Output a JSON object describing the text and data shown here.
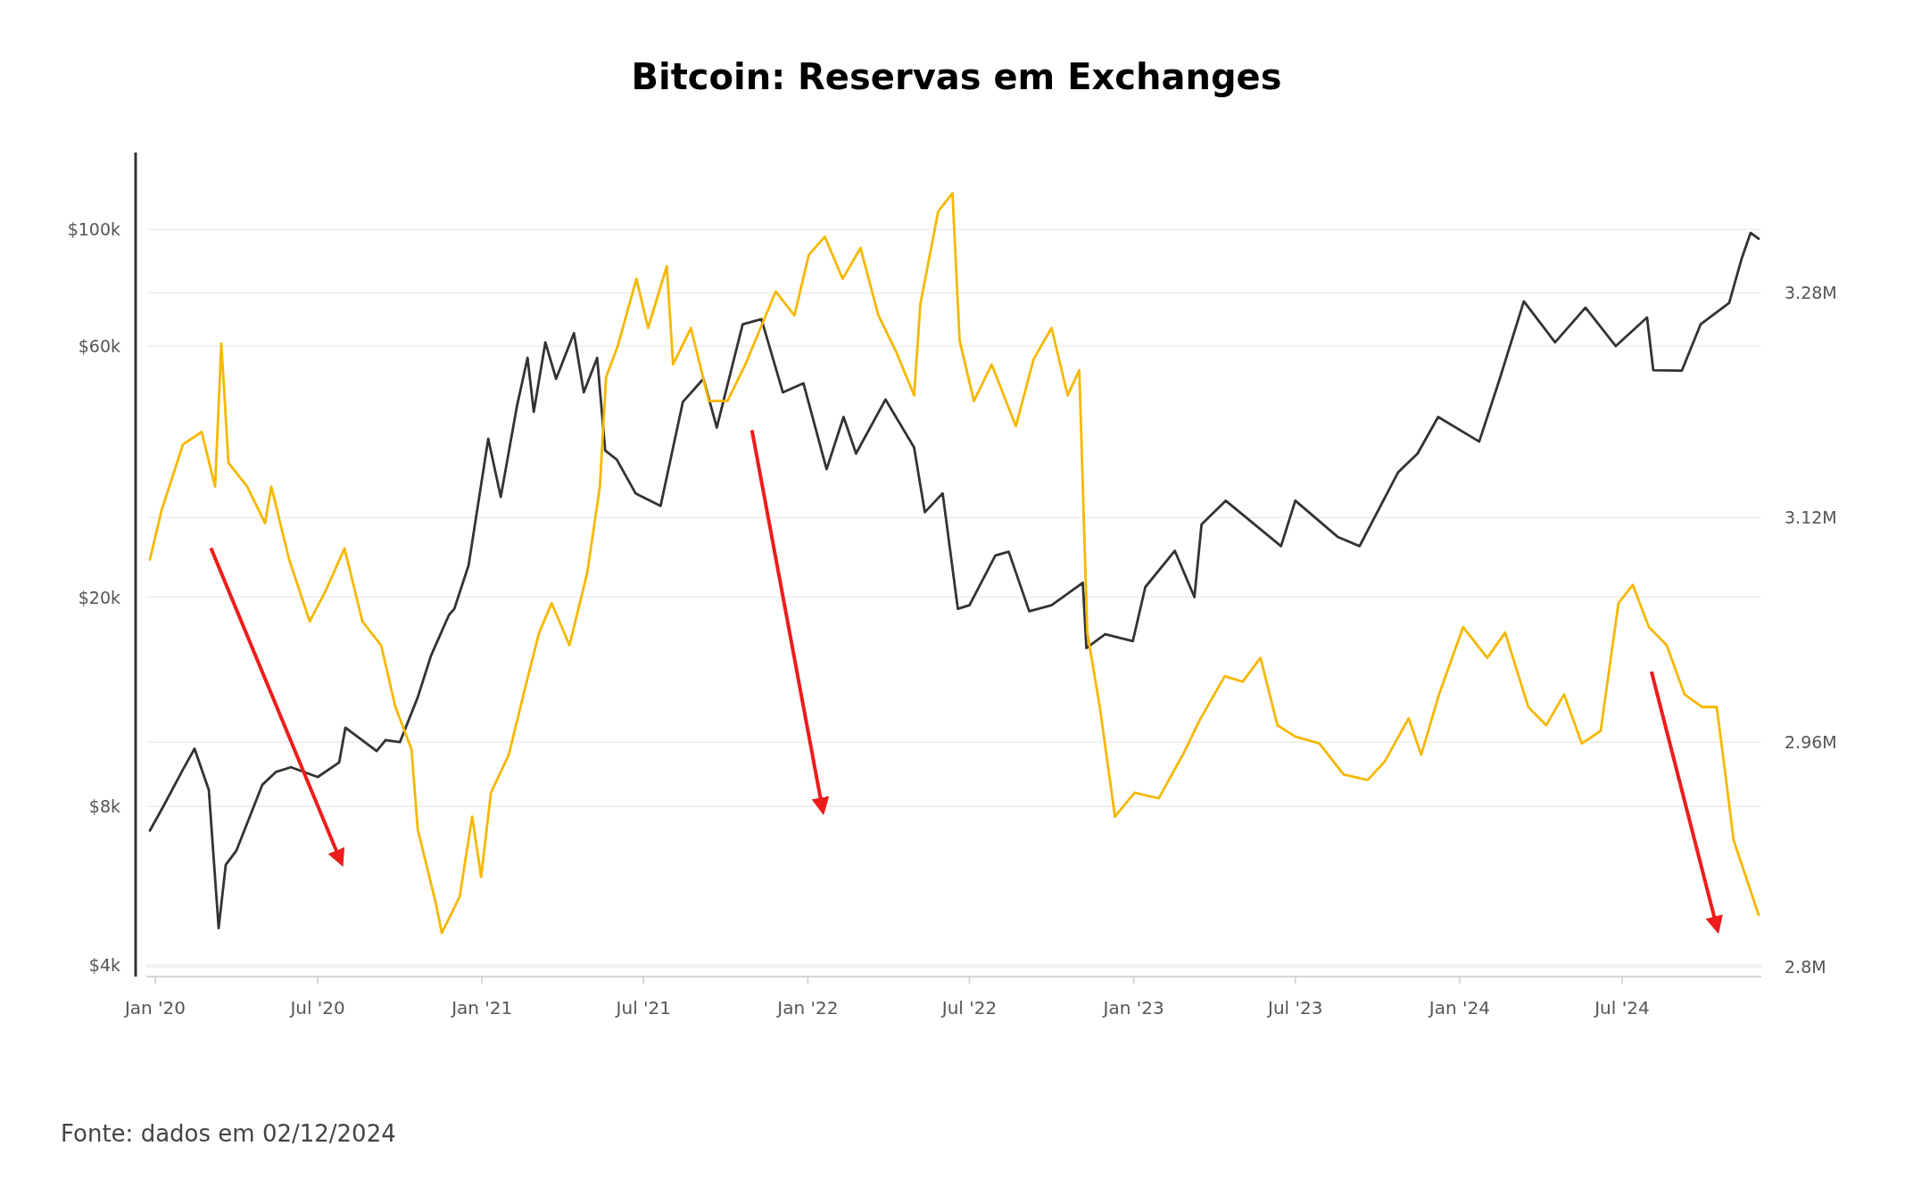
{
  "chart_data": {
    "type": "line",
    "title": "Bitcoin: Reservas em Exchanges",
    "annotations": [
      "Fonte: dados em 02/12/2024"
    ],
    "xlim": [
      "2019-12-22",
      "2024-12-04"
    ],
    "xticks": [
      {
        "value": "2020-01-01",
        "label": "Jan '20"
      },
      {
        "value": "2020-07-01",
        "label": "Jul '20"
      },
      {
        "value": "2021-01-01",
        "label": "Jan '21"
      },
      {
        "value": "2021-07-01",
        "label": "Jul '21"
      },
      {
        "value": "2022-01-01",
        "label": "Jan '22"
      },
      {
        "value": "2022-07-01",
        "label": "Jul '22"
      },
      {
        "value": "2023-01-01",
        "label": "Jan '23"
      },
      {
        "value": "2023-07-01",
        "label": "Jul '23"
      },
      {
        "value": "2024-01-01",
        "label": "Jan '24"
      },
      {
        "value": "2024-07-01",
        "label": "Jul '24"
      }
    ],
    "log": "y",
    "ylim": [
      3800,
      140000
    ],
    "yticks": [
      {
        "value": 4000,
        "label": "$4k"
      },
      {
        "value": 8000,
        "label": "$8k"
      },
      {
        "value": 20000,
        "label": "$20k"
      },
      {
        "value": 60000,
        "label": "$60k"
      },
      {
        "value": 100000,
        "label": "$100k"
      }
    ],
    "y2lim": [
      2.793,
      3.38
    ],
    "y2ticks": [
      {
        "value": 2.8,
        "label": "2.8M"
      },
      {
        "value": 2.96,
        "label": "2.96M"
      },
      {
        "value": 3.12,
        "label": "3.12M"
      },
      {
        "value": 3.28,
        "label": "3.28M"
      }
    ],
    "grid": "y",
    "series": [
      {
        "color": "#333333",
        "x": [
          "2019-12-26",
          "2020-01-10",
          "2020-02-01",
          "2020-02-14",
          "2020-03-01",
          "2020-03-12",
          "2020-03-20",
          "2020-04-01",
          "2020-04-30",
          "2020-05-15",
          "2020-06-01",
          "2020-07-01",
          "2020-07-25",
          "2020-08-01",
          "2020-09-05",
          "2020-09-15",
          "2020-10-01",
          "2020-10-21",
          "2020-11-05",
          "2020-11-25",
          "2020-12-01",
          "2020-12-17",
          "2021-01-08",
          "2021-01-22",
          "2021-02-09",
          "2021-02-21",
          "2021-02-28",
          "2021-03-13",
          "2021-03-25",
          "2021-04-14",
          "2021-04-25",
          "2021-05-10",
          "2021-05-19",
          "2021-06-01",
          "2021-06-22",
          "2021-07-20",
          "2021-08-14",
          "2021-09-06",
          "2021-09-21",
          "2021-10-20",
          "2021-11-10",
          "2021-12-04",
          "2021-12-27",
          "2022-01-22",
          "2022-02-10",
          "2022-02-24",
          "2022-03-29",
          "2022-04-30",
          "2022-05-12",
          "2022-06-01",
          "2022-06-18",
          "2022-07-01",
          "2022-07-30",
          "2022-08-14",
          "2022-09-06",
          "2022-10-01",
          "2022-11-05",
          "2022-11-09",
          "2022-11-30",
          "2022-12-31",
          "2023-01-14",
          "2023-02-16",
          "2023-03-10",
          "2023-03-18",
          "2023-04-14",
          "2023-06-15",
          "2023-07-01",
          "2023-08-18",
          "2023-09-11",
          "2023-10-24",
          "2023-11-15",
          "2023-12-08",
          "2024-01-23",
          "2024-02-15",
          "2024-03-13",
          "2024-04-17",
          "2024-05-21",
          "2024-06-24",
          "2024-07-29",
          "2024-08-05",
          "2024-09-06",
          "2024-09-27",
          "2024-10-29",
          "2024-11-12",
          "2024-11-22",
          "2024-12-01"
        ],
        "values": [
          7200,
          8000,
          9400,
          10300,
          8600,
          4700,
          6200,
          6600,
          8800,
          9300,
          9500,
          9100,
          9700,
          11300,
          10200,
          10700,
          10600,
          12900,
          15500,
          18500,
          19000,
          23000,
          40000,
          31000,
          46000,
          57000,
          45000,
          61000,
          52000,
          63500,
          49000,
          57000,
          38000,
          36500,
          31500,
          29800,
          47000,
          52000,
          42000,
          66000,
          67500,
          49000,
          51000,
          35000,
          44000,
          37500,
          47500,
          38500,
          29000,
          31500,
          19000,
          19300,
          24000,
          24400,
          18800,
          19300,
          21300,
          16000,
          17000,
          16500,
          20900,
          24500,
          20000,
          27500,
          30500,
          25000,
          30500,
          26000,
          25000,
          34500,
          37500,
          44000,
          39500,
          52000,
          73000,
          61000,
          71000,
          60000,
          68000,
          54000,
          53900,
          66000,
          72500,
          88000,
          98500,
          96000
        ]
      },
      {
        "color": "#f5b800",
        "axis": "y2",
        "x": [
          "2019-12-26",
          "2020-01-08",
          "2020-02-01",
          "2020-02-22",
          "2020-03-08",
          "2020-03-15",
          "2020-03-23",
          "2020-04-13",
          "2020-05-03",
          "2020-05-10",
          "2020-05-30",
          "2020-06-22",
          "2020-07-10",
          "2020-07-31",
          "2020-08-20",
          "2020-09-10",
          "2020-09-26",
          "2020-10-14",
          "2020-10-21",
          "2020-11-10",
          "2020-11-17",
          "2020-12-07",
          "2020-12-21",
          "2020-12-31",
          "2021-01-11",
          "2021-01-31",
          "2021-02-20",
          "2021-03-06",
          "2021-03-20",
          "2021-04-09",
          "2021-04-29",
          "2021-05-13",
          "2021-05-20",
          "2021-06-02",
          "2021-06-23",
          "2021-07-06",
          "2021-07-27",
          "2021-08-03",
          "2021-08-23",
          "2021-09-12",
          "2021-10-03",
          "2021-10-23",
          "2021-11-26",
          "2021-12-17",
          "2022-01-02",
          "2022-01-20",
          "2022-02-09",
          "2022-03-01",
          "2022-03-21",
          "2022-04-10",
          "2022-04-30",
          "2022-05-07",
          "2022-05-27",
          "2022-06-12",
          "2022-06-20",
          "2022-07-06",
          "2022-07-26",
          "2022-08-22",
          "2022-09-11",
          "2022-10-01",
          "2022-10-19",
          "2022-11-01",
          "2022-11-10",
          "2022-11-24",
          "2022-12-11",
          "2023-01-02",
          "2023-01-29",
          "2023-02-25",
          "2023-03-17",
          "2023-04-13",
          "2023-05-03",
          "2023-05-23",
          "2023-06-11",
          "2023-07-01",
          "2023-07-28",
          "2023-08-24",
          "2023-09-20",
          "2023-10-09",
          "2023-11-05",
          "2023-11-19",
          "2023-12-09",
          "2024-01-05",
          "2024-02-01",
          "2024-02-21",
          "2024-03-18",
          "2024-04-07",
          "2024-04-27",
          "2024-05-17",
          "2024-06-07",
          "2024-06-27",
          "2024-07-13",
          "2024-07-31",
          "2024-08-20",
          "2024-09-09",
          "2024-09-29",
          "2024-10-15",
          "2024-10-23",
          "2024-11-03",
          "2024-12-01"
        ],
        "values": [
          3.09,
          3.125,
          3.172,
          3.181,
          3.142,
          3.244,
          3.159,
          3.142,
          3.116,
          3.142,
          3.09,
          3.046,
          3.068,
          3.098,
          3.046,
          3.029,
          2.985,
          2.955,
          2.898,
          2.846,
          2.824,
          2.85,
          2.907,
          2.864,
          2.924,
          2.951,
          3.003,
          3.038,
          3.059,
          3.029,
          3.081,
          3.142,
          3.22,
          3.242,
          3.29,
          3.255,
          3.299,
          3.229,
          3.255,
          3.203,
          3.203,
          3.229,
          3.281,
          3.264,
          3.307,
          3.32,
          3.29,
          3.312,
          3.264,
          3.238,
          3.207,
          3.272,
          3.338,
          3.351,
          3.246,
          3.203,
          3.229,
          3.185,
          3.233,
          3.255,
          3.207,
          3.225,
          3.038,
          2.985,
          2.907,
          2.924,
          2.92,
          2.951,
          2.977,
          3.007,
          3.003,
          3.02,
          2.972,
          2.964,
          2.959,
          2.937,
          2.933,
          2.946,
          2.977,
          2.951,
          2.994,
          3.042,
          3.02,
          3.038,
          2.985,
          2.972,
          2.994,
          2.959,
          2.968,
          3.059,
          3.072,
          3.042,
          3.029,
          2.994,
          2.985,
          2.985,
          2.946,
          2.89,
          2.837
        ]
      }
    ]
  }
}
